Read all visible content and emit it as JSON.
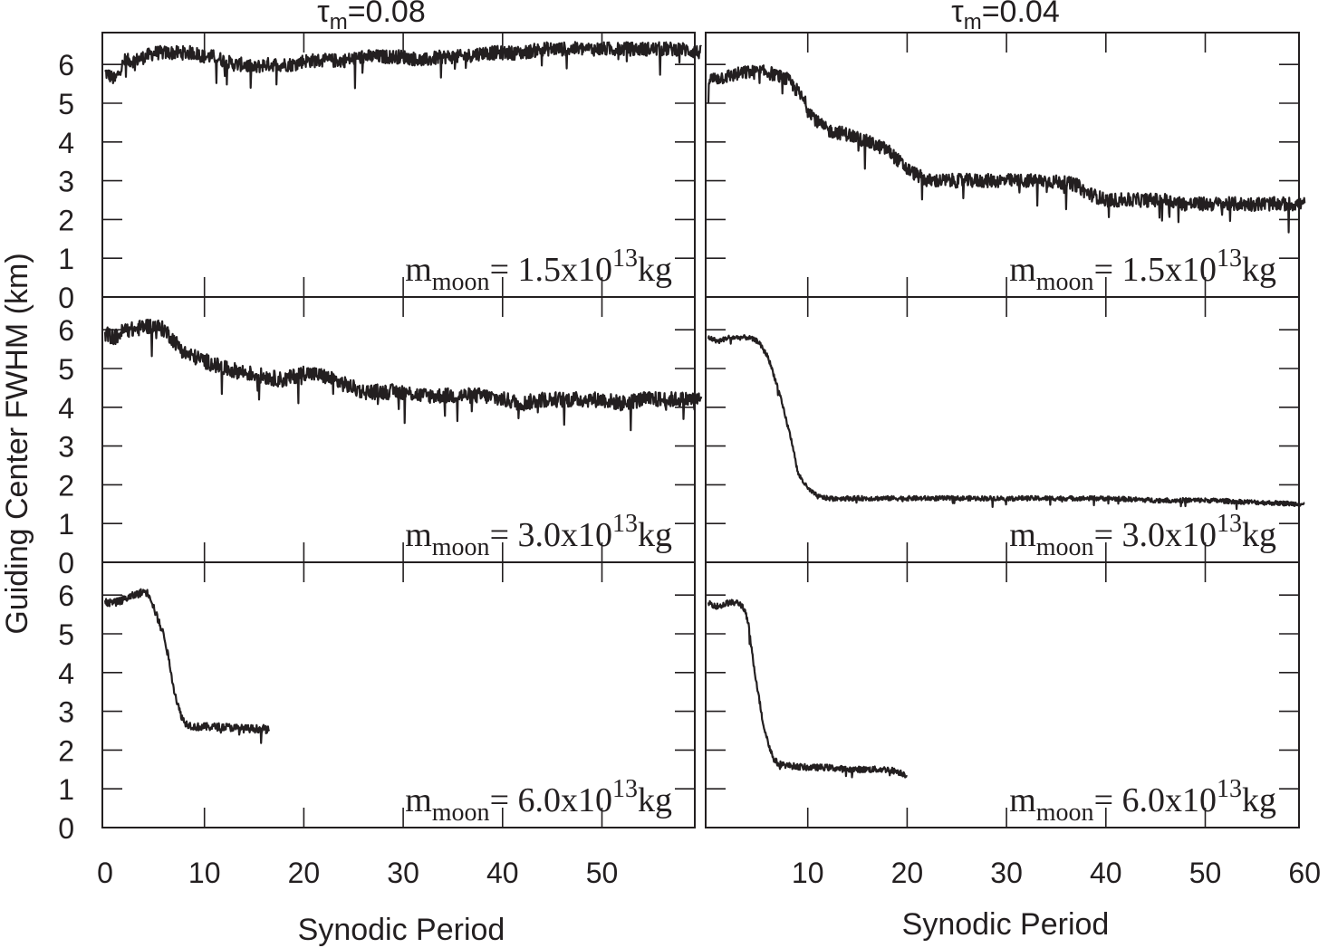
{
  "figure": {
    "ylabel": "Guiding Center FWHM (km)",
    "xlabel": "Synodic Period",
    "line_color": "#231f20"
  },
  "columns": [
    {
      "title_base": "τ",
      "title_sub": "m",
      "title_rest": "=0.08"
    },
    {
      "title_base": "τ",
      "title_sub": "m",
      "title_rest": "=0.04"
    }
  ],
  "annotation_parts": {
    "m": "m",
    "sub": "moon",
    "eq": "= ",
    "x": "x10",
    "exp": "13",
    "unit": "kg"
  },
  "chart_data": [
    {
      "type": "line",
      "panel": "0.08-1.5",
      "annotation_mantissa": "1.5",
      "xlim": [
        0,
        60
      ],
      "ylim": [
        0,
        7
      ],
      "xticks": [
        0,
        10,
        20,
        30,
        40,
        50
      ],
      "yticks": [
        0,
        1,
        2,
        3,
        4,
        5,
        6
      ],
      "points": [
        [
          0,
          5.8
        ],
        [
          1,
          5.6
        ],
        [
          2,
          6.1
        ],
        [
          3,
          6.1
        ],
        [
          4,
          6.2
        ],
        [
          5,
          6.3
        ],
        [
          6,
          6.3
        ],
        [
          7,
          6.3
        ],
        [
          8,
          6.3
        ],
        [
          9,
          6.3
        ],
        [
          10,
          6.2
        ],
        [
          11,
          6.2
        ],
        [
          12,
          6.1
        ],
        [
          13,
          6.0
        ],
        [
          14,
          6.0
        ],
        [
          15,
          5.9
        ],
        [
          16,
          6.0
        ],
        [
          17,
          6.0
        ],
        [
          18,
          6.0
        ],
        [
          19,
          6.0
        ],
        [
          20,
          6.1
        ],
        [
          22,
          6.1
        ],
        [
          24,
          6.1
        ],
        [
          26,
          6.2
        ],
        [
          28,
          6.2
        ],
        [
          30,
          6.2
        ],
        [
          32,
          6.1
        ],
        [
          34,
          6.2
        ],
        [
          36,
          6.2
        ],
        [
          38,
          6.3
        ],
        [
          40,
          6.3
        ],
        [
          42,
          6.3
        ],
        [
          44,
          6.4
        ],
        [
          46,
          6.4
        ],
        [
          48,
          6.4
        ],
        [
          50,
          6.4
        ],
        [
          52,
          6.4
        ],
        [
          54,
          6.4
        ],
        [
          56,
          6.4
        ],
        [
          58,
          6.4
        ],
        [
          60,
          6.3
        ]
      ],
      "noise": 0.18
    },
    {
      "type": "line",
      "panel": "0.04-1.5",
      "annotation_mantissa": "1.5",
      "xlim": [
        0,
        60
      ],
      "ylim": [
        0,
        7
      ],
      "xticks": [
        10,
        20,
        30,
        40,
        50,
        60
      ],
      "yticks": [],
      "points": [
        [
          0,
          5.6
        ],
        [
          2,
          5.7
        ],
        [
          4,
          5.8
        ],
        [
          6,
          5.8
        ],
        [
          8,
          5.6
        ],
        [
          9,
          5.3
        ],
        [
          10,
          4.9
        ],
        [
          11,
          4.5
        ],
        [
          12,
          4.3
        ],
        [
          14,
          4.2
        ],
        [
          16,
          4.0
        ],
        [
          18,
          3.8
        ],
        [
          20,
          3.3
        ],
        [
          22,
          3.0
        ],
        [
          25,
          3.0
        ],
        [
          28,
          3.0
        ],
        [
          31,
          3.0
        ],
        [
          34,
          3.0
        ],
        [
          37,
          2.9
        ],
        [
          38,
          2.7
        ],
        [
          40,
          2.5
        ],
        [
          42,
          2.5
        ],
        [
          44,
          2.5
        ],
        [
          46,
          2.5
        ],
        [
          48,
          2.4
        ],
        [
          50,
          2.4
        ],
        [
          52,
          2.4
        ],
        [
          54,
          2.4
        ],
        [
          56,
          2.4
        ],
        [
          58,
          2.4
        ],
        [
          60,
          2.4
        ]
      ],
      "noise": 0.18
    },
    {
      "type": "line",
      "panel": "0.08-3.0",
      "annotation_mantissa": "3.0",
      "xlim": [
        0,
        60
      ],
      "ylim": [
        0,
        7
      ],
      "xticks": [
        0,
        10,
        20,
        30,
        40,
        50
      ],
      "yticks": [
        0,
        1,
        2,
        3,
        4,
        5,
        6
      ],
      "points": [
        [
          0,
          5.9
        ],
        [
          1,
          5.8
        ],
        [
          2,
          6.0
        ],
        [
          3,
          6.0
        ],
        [
          4,
          6.1
        ],
        [
          5,
          6.1
        ],
        [
          6,
          6.0
        ],
        [
          7,
          5.7
        ],
        [
          8,
          5.4
        ],
        [
          9,
          5.3
        ],
        [
          10,
          5.2
        ],
        [
          12,
          5.0
        ],
        [
          14,
          4.9
        ],
        [
          16,
          4.8
        ],
        [
          18,
          4.7
        ],
        [
          20,
          4.9
        ],
        [
          22,
          4.8
        ],
        [
          24,
          4.6
        ],
        [
          26,
          4.4
        ],
        [
          28,
          4.4
        ],
        [
          30,
          4.4
        ],
        [
          32,
          4.3
        ],
        [
          34,
          4.3
        ],
        [
          36,
          4.3
        ],
        [
          38,
          4.3
        ],
        [
          40,
          4.2
        ],
        [
          42,
          4.1
        ],
        [
          44,
          4.2
        ],
        [
          46,
          4.2
        ],
        [
          48,
          4.2
        ],
        [
          50,
          4.2
        ],
        [
          52,
          4.1
        ],
        [
          54,
          4.2
        ],
        [
          56,
          4.2
        ],
        [
          58,
          4.2
        ],
        [
          60,
          4.2
        ]
      ],
      "noise": 0.2
    },
    {
      "type": "line",
      "panel": "0.04-3.0",
      "annotation_mantissa": "3.0",
      "xlim": [
        0,
        60
      ],
      "ylim": [
        0,
        7
      ],
      "xticks": [
        10,
        20,
        30,
        40,
        50,
        60
      ],
      "yticks": [],
      "points": [
        [
          0,
          5.8
        ],
        [
          1,
          5.7
        ],
        [
          2,
          5.8
        ],
        [
          3,
          5.8
        ],
        [
          4,
          5.8
        ],
        [
          5,
          5.7
        ],
        [
          6,
          5.3
        ],
        [
          7,
          4.5
        ],
        [
          8,
          3.5
        ],
        [
          8.5,
          3.0
        ],
        [
          9,
          2.3
        ],
        [
          10,
          1.9
        ],
        [
          11,
          1.7
        ],
        [
          12,
          1.65
        ],
        [
          14,
          1.65
        ],
        [
          16,
          1.65
        ],
        [
          20,
          1.65
        ],
        [
          25,
          1.65
        ],
        [
          30,
          1.65
        ],
        [
          35,
          1.65
        ],
        [
          40,
          1.65
        ],
        [
          45,
          1.6
        ],
        [
          50,
          1.6
        ],
        [
          55,
          1.55
        ],
        [
          60,
          1.5
        ]
      ],
      "noise": 0.06
    },
    {
      "type": "line",
      "panel": "0.08-6.0",
      "annotation_mantissa": "6.0",
      "xlim": [
        0,
        60
      ],
      "ylim": [
        0,
        7
      ],
      "xticks": [
        0,
        10,
        20,
        30,
        40,
        50
      ],
      "yticks": [
        0,
        1,
        2,
        3,
        4,
        5,
        6
      ],
      "points": [
        [
          0,
          5.8
        ],
        [
          1,
          5.8
        ],
        [
          2,
          5.9
        ],
        [
          3,
          6.0
        ],
        [
          4,
          6.1
        ],
        [
          4.5,
          6.0
        ],
        [
          5,
          5.6
        ],
        [
          6,
          4.9
        ],
        [
          6.5,
          4.2
        ],
        [
          7,
          3.5
        ],
        [
          7.5,
          3.0
        ],
        [
          8,
          2.7
        ],
        [
          9,
          2.6
        ],
        [
          10,
          2.6
        ],
        [
          12,
          2.6
        ],
        [
          14,
          2.55
        ],
        [
          16,
          2.55
        ],
        [
          16.5,
          2.5
        ]
      ],
      "noise": 0.1
    },
    {
      "type": "line",
      "panel": "0.04-6.0",
      "annotation_mantissa": "6.0",
      "xlim": [
        0,
        60
      ],
      "ylim": [
        0,
        7
      ],
      "xticks": [
        10,
        20,
        30,
        40,
        50,
        60
      ],
      "yticks": [],
      "points": [
        [
          0,
          5.8
        ],
        [
          1,
          5.7
        ],
        [
          2,
          5.8
        ],
        [
          3,
          5.8
        ],
        [
          3.5,
          5.7
        ],
        [
          4,
          5.3
        ],
        [
          4.5,
          4.3
        ],
        [
          5,
          3.5
        ],
        [
          5.5,
          2.7
        ],
        [
          6,
          2.2
        ],
        [
          6.5,
          1.8
        ],
        [
          7,
          1.65
        ],
        [
          8,
          1.6
        ],
        [
          10,
          1.55
        ],
        [
          12,
          1.55
        ],
        [
          14,
          1.5
        ],
        [
          16,
          1.5
        ],
        [
          18,
          1.5
        ],
        [
          19,
          1.45
        ],
        [
          20,
          1.35
        ]
      ],
      "noise": 0.08
    }
  ]
}
